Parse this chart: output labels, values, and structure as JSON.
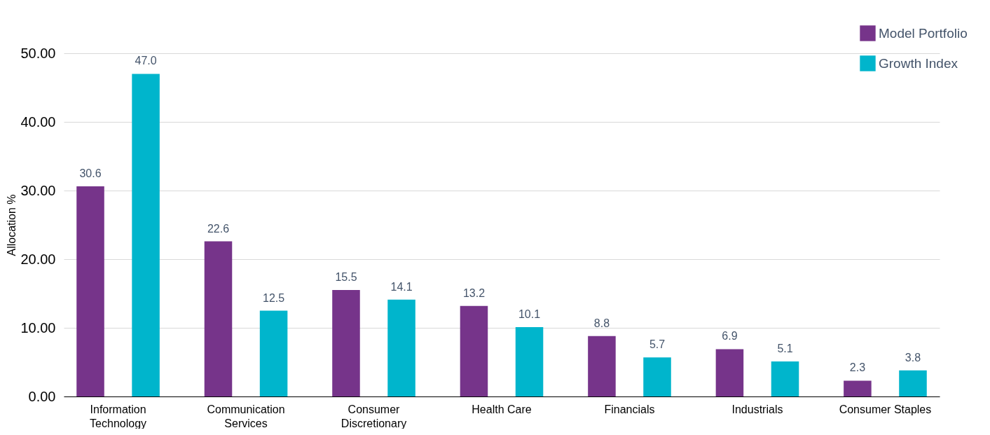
{
  "chart_data": {
    "type": "bar",
    "ylabel": "Allocation %",
    "categories": [
      "Information Technology",
      "Communication Services",
      "Consumer Discretionary",
      "Health Care",
      "Financials",
      "Industrials",
      "Consumer Staples"
    ],
    "series": [
      {
        "name": "Model Portfolio",
        "color": "#76348a",
        "values": [
          30.6,
          22.6,
          15.5,
          13.2,
          8.8,
          6.9,
          2.3
        ],
        "value_labels": [
          "30.6",
          "22.6",
          "15.5",
          "13.2",
          "8.8",
          "6.9",
          "2.3"
        ]
      },
      {
        "name": "Growth Index",
        "color": "#00b5cc",
        "values": [
          47.0,
          12.5,
          14.1,
          10.1,
          5.7,
          5.1,
          3.8
        ],
        "value_labels": [
          "47.0",
          "12.5",
          "14.1",
          "10.1",
          "5.7",
          "5.1",
          "3.8"
        ]
      }
    ],
    "ylim": [
      0,
      50
    ],
    "yticks": [
      {
        "value": 0,
        "label": "0.00"
      },
      {
        "value": 10,
        "label": "10.00"
      },
      {
        "value": 20,
        "label": "20.00"
      },
      {
        "value": 30,
        "label": "30.00"
      },
      {
        "value": 40,
        "label": "40.00"
      },
      {
        "value": 50,
        "label": "50.00"
      }
    ],
    "grid": "y",
    "legend": "top right"
  }
}
